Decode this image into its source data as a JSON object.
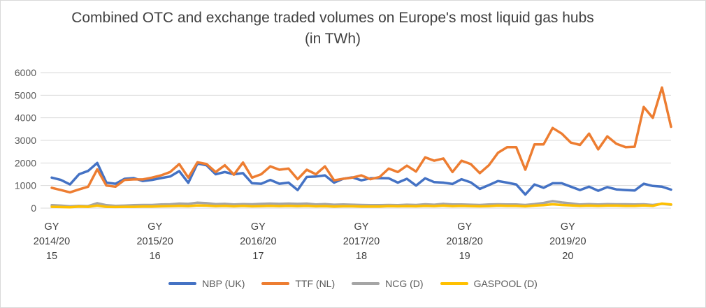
{
  "chart_data": {
    "type": "line",
    "title": "Combined OTC and exchange traded volumes on Europe's most liquid gas hubs  (in TWh)",
    "ylim": [
      0,
      6000
    ],
    "yticks": [
      "6000",
      "5000",
      "4000",
      "3000",
      "2000",
      "1000",
      "0"
    ],
    "xtick_groups": [
      [
        "GY",
        "2014/20",
        "15"
      ],
      [
        "GY",
        "2015/20",
        "16"
      ],
      [
        "GY",
        "2016/20",
        "17"
      ],
      [
        "GY",
        "2017/20",
        "18"
      ],
      [
        "GY",
        "2018/20",
        "19"
      ],
      [
        "GY",
        "2019/20",
        "20"
      ]
    ],
    "grid": true,
    "legend_position": "bottom",
    "series": [
      {
        "name": "NBP (UK)",
        "color": "#4472C4",
        "values": [
          1350,
          1250,
          1050,
          1500,
          1650,
          2000,
          1130,
          1080,
          1300,
          1330,
          1200,
          1250,
          1330,
          1400,
          1640,
          1120,
          1980,
          1900,
          1500,
          1600,
          1500,
          1550,
          1100,
          1080,
          1250,
          1080,
          1130,
          800,
          1380,
          1400,
          1450,
          1130,
          1300,
          1360,
          1230,
          1320,
          1330,
          1320,
          1130,
          1300,
          1000,
          1320,
          1150,
          1130,
          1070,
          1280,
          1140,
          850,
          1020,
          1200,
          1130,
          1050,
          600,
          1050,
          900,
          1100,
          1100,
          950,
          800,
          950,
          770,
          930,
          830,
          800,
          780,
          1080,
          980,
          950,
          820
        ]
      },
      {
        "name": "TTF (NL)",
        "color": "#ED7D31",
        "values": [
          900,
          800,
          700,
          830,
          950,
          1720,
          1000,
          950,
          1250,
          1270,
          1270,
          1350,
          1450,
          1600,
          1950,
          1350,
          2030,
          1950,
          1600,
          1900,
          1480,
          2020,
          1350,
          1500,
          1850,
          1700,
          1750,
          1280,
          1700,
          1500,
          1850,
          1230,
          1300,
          1350,
          1450,
          1280,
          1380,
          1750,
          1600,
          1880,
          1620,
          2250,
          2100,
          2200,
          1600,
          2100,
          1950,
          1550,
          1900,
          2450,
          2700,
          2700,
          1700,
          2820,
          2820,
          3550,
          3300,
          2900,
          2800,
          3300,
          2600,
          3180,
          2850,
          2700,
          2720,
          4480,
          4000,
          5340,
          3600
        ]
      },
      {
        "name": "NCG (D)",
        "color": "#A5A5A5",
        "values": [
          130,
          110,
          80,
          100,
          90,
          220,
          130,
          100,
          110,
          130,
          140,
          140,
          160,
          170,
          200,
          190,
          240,
          220,
          180,
          190,
          160,
          180,
          170,
          190,
          200,
          190,
          200,
          190,
          200,
          160,
          180,
          150,
          160,
          150,
          140,
          130,
          130,
          140,
          130,
          150,
          140,
          170,
          150,
          190,
          160,
          160,
          150,
          140,
          160,
          170,
          160,
          160,
          140,
          180,
          230,
          310,
          250,
          210,
          160,
          180,
          160,
          180,
          170,
          170,
          160,
          170,
          140,
          190,
          150
        ]
      },
      {
        "name": "GASPOOL (D)",
        "color": "#FFC000",
        "values": [
          60,
          50,
          40,
          70,
          60,
          110,
          60,
          50,
          60,
          60,
          70,
          70,
          80,
          90,
          100,
          90,
          120,
          110,
          90,
          100,
          80,
          100,
          80,
          90,
          100,
          90,
          100,
          90,
          100,
          80,
          90,
          70,
          80,
          80,
          70,
          70,
          70,
          90,
          80,
          90,
          80,
          100,
          90,
          110,
          90,
          100,
          90,
          80,
          90,
          110,
          100,
          100,
          80,
          110,
          130,
          170,
          140,
          120,
          100,
          110,
          100,
          110,
          110,
          100,
          100,
          120,
          100,
          200,
          160
        ]
      }
    ]
  }
}
